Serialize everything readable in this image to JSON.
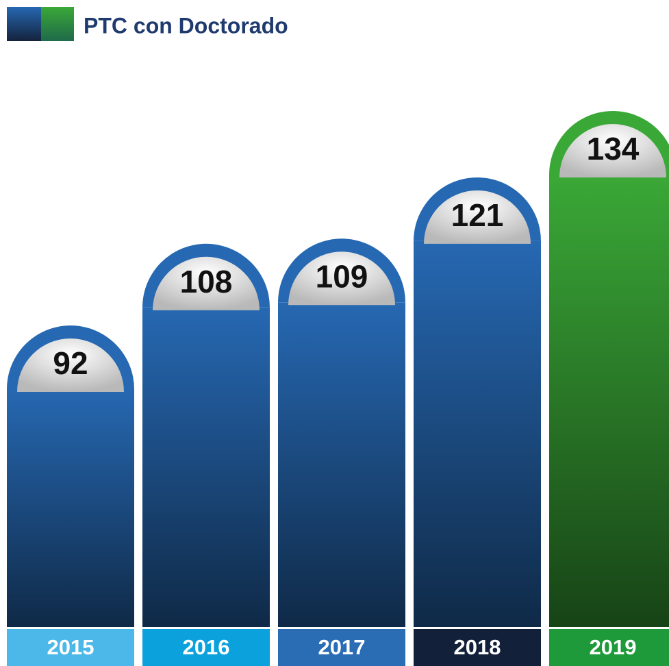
{
  "chart_data": {
    "type": "bar",
    "title": "PTC con Doctorado",
    "categories": [
      "2015",
      "2016",
      "2017",
      "2018",
      "2019"
    ],
    "values": [
      92,
      108,
      109,
      121,
      134
    ],
    "colors": [
      "#2668b2",
      "#2668b2",
      "#2668b2",
      "#2668b2",
      "#3aa837"
    ],
    "category_colors": [
      "#4cb8e9",
      "#0aa1dc",
      "#2a6db5",
      "#13203a",
      "#1e9a3a"
    ]
  }
}
